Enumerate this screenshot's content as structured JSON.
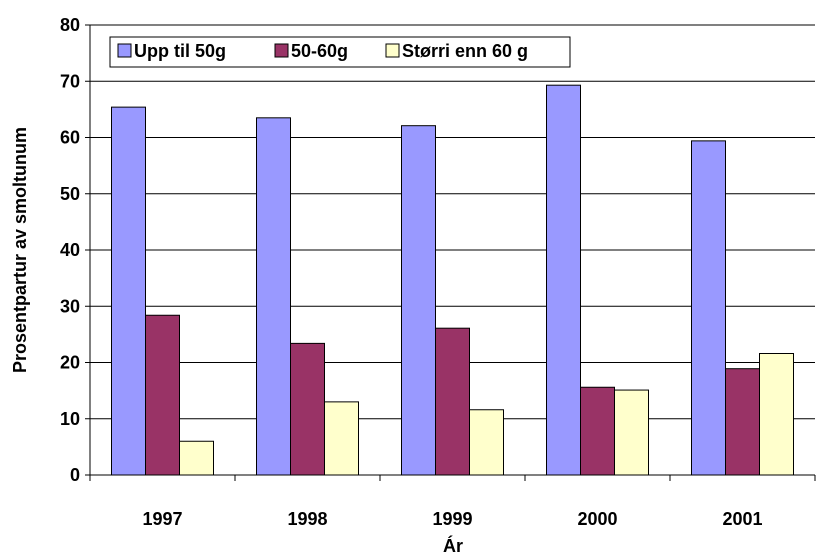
{
  "chart_data": {
    "type": "bar",
    "title": "",
    "xlabel": "Ár",
    "ylabel": "Prosentpartur av smoltunum",
    "categories": [
      "1997",
      "1998",
      "1999",
      "2000",
      "2001"
    ],
    "series": [
      {
        "name": "Upp til 50g",
        "color": "#9999ff",
        "values": [
          65.4,
          63.5,
          62.1,
          69.3,
          59.4
        ]
      },
      {
        "name": "50-60g",
        "color": "#993366",
        "values": [
          28.4,
          23.4,
          26.1,
          15.6,
          18.9
        ]
      },
      {
        "name": "Størri enn 60 g",
        "color": "#ffffcc",
        "values": [
          6.0,
          13.0,
          11.6,
          15.1,
          21.6
        ]
      }
    ],
    "ylim": [
      0,
      80
    ],
    "yticks": [
      0,
      10,
      20,
      30,
      40,
      50,
      60,
      70,
      80
    ],
    "grid": true,
    "legend_position": "top-left"
  }
}
